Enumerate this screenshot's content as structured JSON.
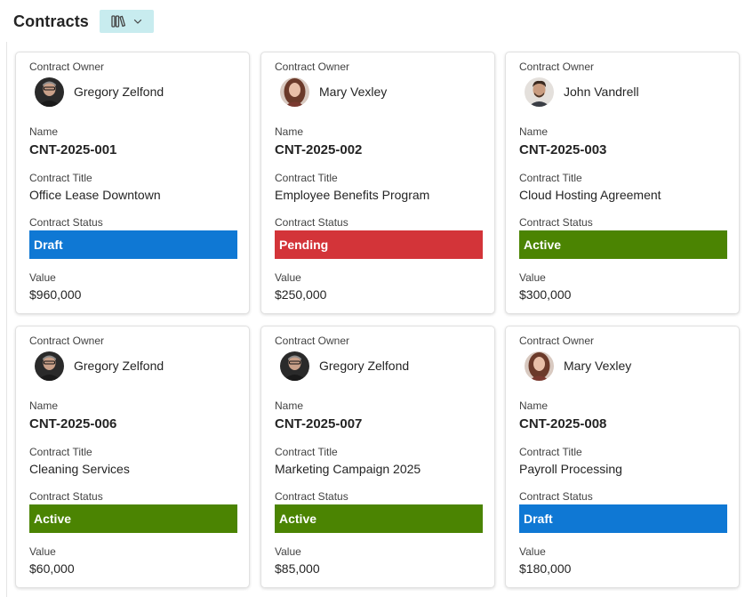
{
  "header": {
    "title": "Contracts",
    "view_icon": "library-icon",
    "dropdown_icon": "chevron-down-icon"
  },
  "labels": {
    "owner": "Contract Owner",
    "name": "Name",
    "title": "Contract Title",
    "status": "Contract Status",
    "value": "Value"
  },
  "status_colors": {
    "Draft": "#0F78D4",
    "Pending": "#D33439",
    "Active": "#4B8402"
  },
  "cards": [
    {
      "owner": "Gregory Zelfond",
      "name": "CNT-2025-001",
      "title": "Office Lease Downtown",
      "status": "Draft",
      "value": "$960,000"
    },
    {
      "owner": "Mary Vexley",
      "name": "CNT-2025-002",
      "title": "Employee Benefits Program",
      "status": "Pending",
      "value": "$250,000"
    },
    {
      "owner": "John Vandrell",
      "name": "CNT-2025-003",
      "title": "Cloud Hosting Agreement",
      "status": "Active",
      "value": "$300,000"
    },
    {
      "owner": "Gregory Zelfond",
      "name": "CNT-2025-006",
      "title": "Cleaning Services",
      "status": "Active",
      "value": "$60,000"
    },
    {
      "owner": "Gregory Zelfond",
      "name": "CNT-2025-007",
      "title": "Marketing Campaign 2025",
      "status": "Active",
      "value": "$85,000"
    },
    {
      "owner": "Mary Vexley",
      "name": "CNT-2025-008",
      "title": "Payroll Processing",
      "status": "Draft",
      "value": "$180,000"
    }
  ]
}
